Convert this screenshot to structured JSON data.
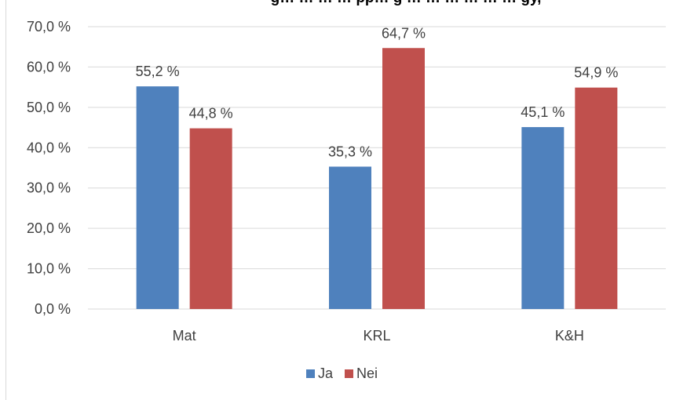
{
  "chart_data": {
    "type": "bar",
    "title": "",
    "title_fragment": "g… … … … pp… g … … … … … … gy,",
    "categories": [
      "Mat",
      "KRL",
      "K&H"
    ],
    "series": [
      {
        "name": "Ja",
        "color": "#4f81bd",
        "values": [
          55.2,
          35.3,
          45.1
        ],
        "labels": [
          "55,2 %",
          "35,3 %",
          "45,1 %"
        ]
      },
      {
        "name": "Nei",
        "color": "#c0504d",
        "values": [
          44.8,
          64.7,
          54.9
        ],
        "labels": [
          "44,8 %",
          "64,7 %",
          "54,9 %"
        ]
      }
    ],
    "ylim": [
      0,
      70
    ],
    "yticks": [
      "0,0 %",
      "10,0 %",
      "20,0 %",
      "30,0 %",
      "40,0 %",
      "50,0 %",
      "60,0 %",
      "70,0 %"
    ],
    "grid": true,
    "legend": "bottom"
  }
}
